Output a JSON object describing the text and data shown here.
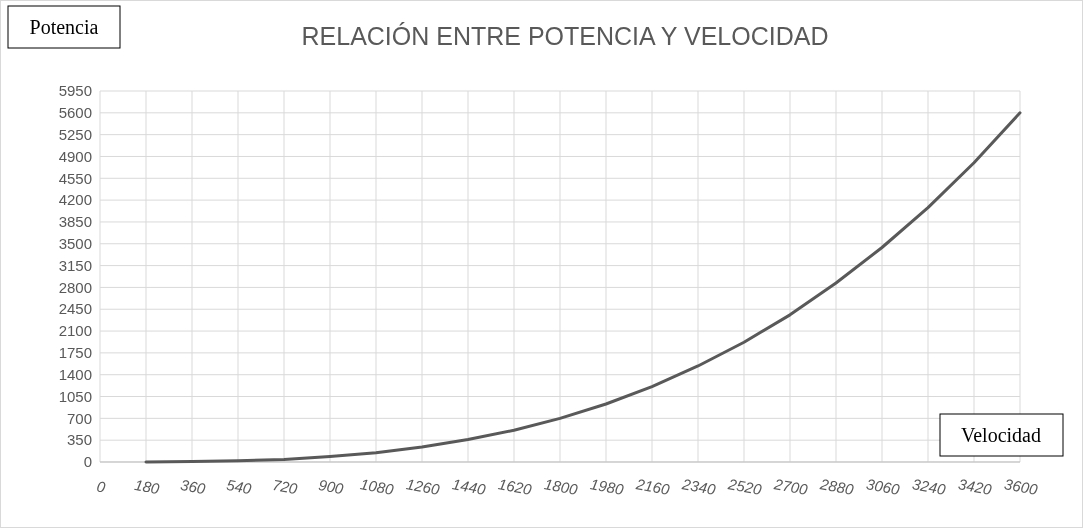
{
  "chart_data": {
    "type": "line",
    "title": "RELACIÓN ENTRE POTENCIA Y VELOCIDAD",
    "xlabel": "Velocidad",
    "ylabel": "Potencia",
    "x": [
      180,
      360,
      540,
      720,
      900,
      1080,
      1260,
      1440,
      1620,
      1800,
      1980,
      2160,
      2340,
      2520,
      2700,
      2880,
      3060,
      3240,
      3420,
      3600
    ],
    "series": [
      {
        "color": "#595959",
        "values": [
          0,
          10,
          20,
          40,
          90,
          150,
          240,
          360,
          510,
          700,
          930,
          1210,
          1540,
          1920,
          2360,
          2870,
          3440,
          4080,
          4800,
          5600
        ]
      }
    ],
    "xlim": [
      0,
      3600
    ],
    "xticks": [
      0,
      180,
      360,
      540,
      720,
      900,
      1080,
      1260,
      1440,
      1620,
      1800,
      1980,
      2160,
      2340,
      2520,
      2700,
      2880,
      3060,
      3240,
      3420,
      3600
    ],
    "ylim": [
      0,
      5950
    ],
    "yticks": [
      0,
      350,
      700,
      1050,
      1400,
      1750,
      2100,
      2450,
      2800,
      3150,
      3500,
      3850,
      4200,
      4550,
      4900,
      5250,
      5600,
      5950
    ],
    "grid": true,
    "marker": "none",
    "line_style": "solid"
  }
}
